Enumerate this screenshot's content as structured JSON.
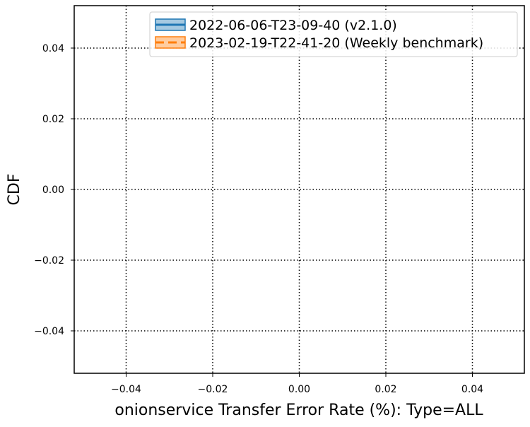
{
  "chart_data": {
    "type": "line",
    "title": "",
    "xlabel": "onionservice Transfer Error Rate (%): Type=ALL",
    "ylabel": "CDF",
    "xlim": [
      -0.052,
      0.052
    ],
    "ylim": [
      -0.052,
      0.052
    ],
    "x_ticks": [
      -0.04,
      -0.02,
      0.0,
      0.02,
      0.04
    ],
    "x_tick_labels": [
      "−0.04",
      "−0.02",
      "0.00",
      "0.02",
      "0.04"
    ],
    "y_ticks": [
      -0.04,
      -0.02,
      0.0,
      0.02,
      0.04
    ],
    "y_tick_labels": [
      "−0.04",
      "−0.02",
      "0.00",
      "0.02",
      "0.04"
    ],
    "grid": true,
    "grid_style": "dotted",
    "legend_position": "top-right",
    "series": [
      {
        "name": "2022-06-06-T23-09-40 (v2.1.0)",
        "line_style": "solid",
        "color": "#1f77b4",
        "x": [],
        "y": []
      },
      {
        "name": "2023-02-19-T22-41-20 (Weekly benchmark)",
        "line_style": "dashed",
        "color": "#ff7f0e",
        "x": [],
        "y": []
      }
    ]
  }
}
